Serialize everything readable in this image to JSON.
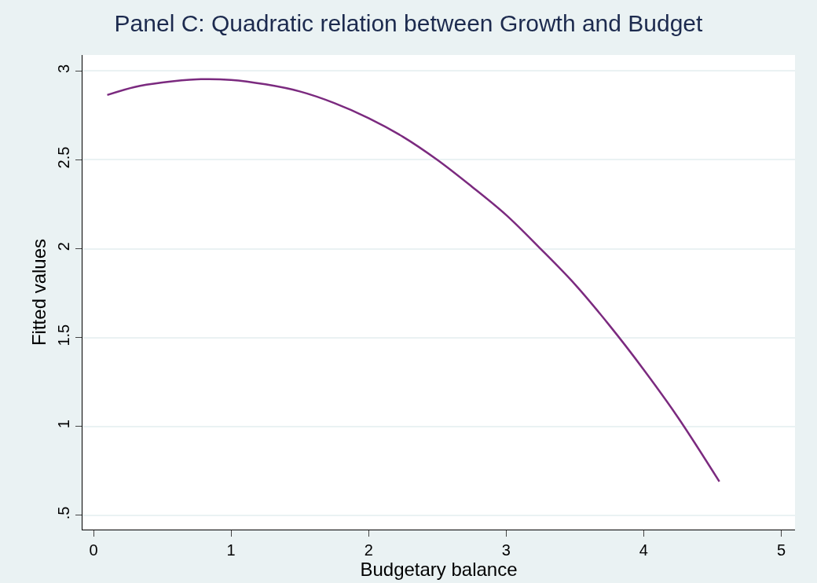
{
  "chart_data": {
    "type": "line",
    "title": "Panel C: Quadratic relation between Growth and Budget",
    "xlabel": "Budgetary balance",
    "ylabel": "Fitted values",
    "x": [
      0.1,
      0.3,
      0.5,
      0.75,
      1,
      1.25,
      1.5,
      1.75,
      2,
      2.25,
      2.5,
      2.75,
      3,
      3.25,
      3.5,
      3.75,
      4,
      4.25,
      4.55
    ],
    "series": [
      {
        "color": "#7b2a7f",
        "values": [
          2.865,
          2.91,
          2.935,
          2.953,
          2.95,
          2.925,
          2.885,
          2.82,
          2.735,
          2.63,
          2.5,
          2.35,
          2.19,
          2.0,
          1.8,
          1.57,
          1.32,
          1.05,
          0.69
        ]
      }
    ],
    "xlim": [
      -0.08,
      5.1
    ],
    "ylim": [
      0.42,
      3.09
    ],
    "xticks": [
      0,
      1,
      2,
      3,
      4,
      5
    ],
    "yticks": [
      {
        "value": 0.5,
        "label": ".5"
      },
      1,
      1.5,
      2,
      2.5,
      3
    ],
    "grid": "y",
    "marker": "none",
    "line_style": "solid"
  }
}
